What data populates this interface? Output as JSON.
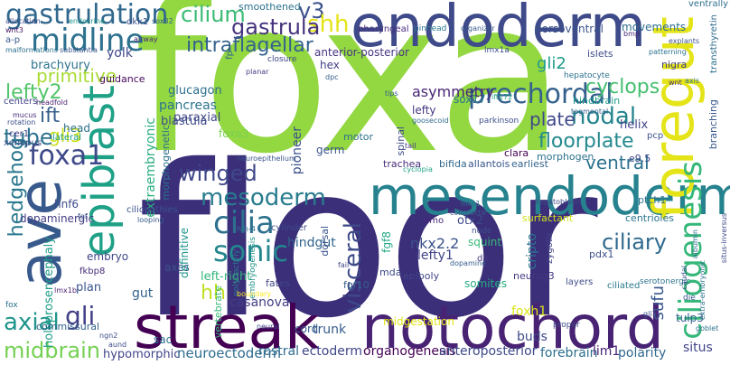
{
  "palette": {
    "dark_purple": "#440154",
    "indigo": "#414487",
    "blue": "#2a788e",
    "teal": "#22a884",
    "green": "#7ad151",
    "yellow_green": "#bddf26",
    "yellow": "#fde725"
  },
  "words": [
    {
      "text": "floor",
      "color": "#3b2f7a"
    },
    {
      "text": "foxa",
      "color": "#93d741"
    },
    {
      "text": "streak",
      "color": "#440154"
    },
    {
      "text": "notochord",
      "color": "#482374"
    },
    {
      "text": "endoderm",
      "color": "#3e4a89"
    },
    {
      "text": "mesendoderm",
      "color": "#26828e"
    },
    {
      "text": "foregut",
      "color": "#e4e419"
    },
    {
      "text": "ave",
      "color": "#38598c"
    },
    {
      "text": "epiblast",
      "color": "#1fa187"
    },
    {
      "text": "gastrulation",
      "color": "#31688e"
    },
    {
      "text": "midline",
      "color": "#2d718e"
    },
    {
      "text": "cilium",
      "color": "#3bbb75"
    },
    {
      "text": "v3",
      "color": "#3b528b"
    },
    {
      "text": "ciliogenesis",
      "color": "#35b779"
    },
    {
      "text": "shh",
      "color": "#e5e419"
    },
    {
      "text": "gastrula",
      "color": "#46337e"
    },
    {
      "text": "prechordal",
      "color": "#34618d"
    },
    {
      "text": "nodal",
      "color": "#25848e"
    },
    {
      "text": "primitive",
      "color": "#a8db34"
    },
    {
      "text": "lefty2",
      "color": "#52c569"
    },
    {
      "text": "ift",
      "color": "#355f8d"
    },
    {
      "text": "gli3",
      "color": "#c8e020"
    },
    {
      "text": "tube",
      "color": "#2c728e"
    },
    {
      "text": "hedgehog",
      "color": "#2a788e"
    },
    {
      "text": "foxa1",
      "color": "#3e4989"
    },
    {
      "text": "axial",
      "color": "#1f958b"
    },
    {
      "text": "gli",
      "color": "#424086"
    },
    {
      "text": "midbrain",
      "color": "#75d054"
    },
    {
      "text": "cilia",
      "color": "#2d718e"
    },
    {
      "text": "sonic",
      "color": "#24868e"
    },
    {
      "text": "hh",
      "color": "#c2df23"
    },
    {
      "text": "mesoderm",
      "color": "#287c8e"
    },
    {
      "text": "winged",
      "color": "#3f4889"
    },
    {
      "text": "intraflagellar",
      "color": "#33638d"
    },
    {
      "text": "visceral",
      "color": "#3e4a89"
    },
    {
      "text": "floorplate",
      "color": "#23898e"
    },
    {
      "text": "ventral",
      "color": "#2c728e"
    },
    {
      "text": "ciliary",
      "color": "#306a8e"
    },
    {
      "text": "cyclops",
      "color": "#44bf70"
    },
    {
      "text": "plate",
      "color": "#3f4889"
    },
    {
      "text": "gli2",
      "color": "#1e9b8a"
    },
    {
      "text": "sox17",
      "color": "#2b758e"
    },
    {
      "text": "lefty",
      "color": "#453781"
    },
    {
      "text": "helix",
      "color": "#404688"
    },
    {
      "text": "asymmetry",
      "color": "#482576"
    },
    {
      "text": "extraembryonic",
      "color": "#29af7f"
    },
    {
      "text": "axes",
      "color": "#3b528b"
    },
    {
      "text": "casanova",
      "color": "#433e85"
    },
    {
      "text": "trunk",
      "color": "#365c8d"
    },
    {
      "text": "rostral",
      "color": "#2f6c8e"
    },
    {
      "text": "ectoderm",
      "color": "#3f4788"
    },
    {
      "text": "organogenesis",
      "color": "#440154"
    },
    {
      "text": "anteroposterior",
      "color": "#3e4a89"
    },
    {
      "text": "forebrain",
      "color": "#2d708e"
    },
    {
      "text": "lim1",
      "color": "#482475"
    },
    {
      "text": "polarity",
      "color": "#31688e"
    },
    {
      "text": "situs",
      "color": "#404588"
    },
    {
      "text": "hindgut",
      "color": "#32658e"
    },
    {
      "text": "cripto",
      "color": "#2a768e"
    },
    {
      "text": "nkx2.2",
      "color": "#3b528b"
    },
    {
      "text": "lefty1",
      "color": "#414487"
    },
    {
      "text": "fgf8",
      "color": "#22a884"
    },
    {
      "text": "somites",
      "color": "#25ab82"
    },
    {
      "text": "foxh1",
      "color": "#dde318"
    },
    {
      "text": "sufu",
      "color": "#38588c"
    },
    {
      "text": "tulp3",
      "color": "#33628d"
    },
    {
      "text": "pioneer",
      "color": "#3b528b"
    },
    {
      "text": "smoothened",
      "color": "#2c728e"
    },
    {
      "text": "glucagon",
      "color": "#2d708e"
    },
    {
      "text": "paraxial",
      "color": "#3f4788"
    },
    {
      "text": "pancreas",
      "color": "#2b758e"
    },
    {
      "text": "blastula",
      "color": "#3e4c8a"
    },
    {
      "text": "foxa3",
      "color": "#7ad151"
    },
    {
      "text": "anterior-posterior",
      "color": "#453581"
    },
    {
      "text": "hex",
      "color": "#423f85"
    },
    {
      "text": "yolk",
      "color": "#3f4889"
    },
    {
      "text": "brachyury",
      "color": "#2c738e"
    },
    {
      "text": "left-right",
      "color": "#32b67a"
    },
    {
      "text": "definitive",
      "color": "#1f948c"
    },
    {
      "text": "vertebrate",
      "color": "#38b977"
    },
    {
      "text": "dopaminergic",
      "color": "#433d84"
    },
    {
      "text": "hnf6",
      "color": "#3e4a89"
    },
    {
      "text": "holoprosencephaly",
      "color": "#1f9e89"
    },
    {
      "text": "embryo",
      "color": "#3f4788"
    },
    {
      "text": "fkbp8",
      "color": "#472c7a"
    },
    {
      "text": "plan",
      "color": "#39558c"
    },
    {
      "text": "commissural",
      "color": "#33638d"
    },
    {
      "text": "gut",
      "color": "#33638d"
    },
    {
      "text": "hypomorphic",
      "color": "#404588"
    },
    {
      "text": "neuroectoderm",
      "color": "#2f6c8e"
    },
    {
      "text": "headfold",
      "color": "#481f70"
    },
    {
      "text": "mucus",
      "color": "#472d7b"
    },
    {
      "text": "rotation",
      "color": "#3b528b"
    },
    {
      "text": "cer1",
      "color": "#433e85"
    },
    {
      "text": "xenopus",
      "color": "#3d4d8a"
    },
    {
      "text": "centers",
      "color": "#414487"
    },
    {
      "text": "lateral",
      "color": "#1f9f88"
    },
    {
      "text": "head",
      "color": "#2d718e"
    },
    {
      "text": "guidance",
      "color": "#46085c"
    },
    {
      "text": "a-p",
      "color": "#375b8d"
    },
    {
      "text": "malformations",
      "color": "#2c718e"
    },
    {
      "text": "substantia",
      "color": "#39558c"
    },
    {
      "text": "allocation",
      "color": "#3d4e8a"
    },
    {
      "text": "endocrine",
      "color": "#1f968b"
    },
    {
      "text": "wnt3",
      "color": "#481467"
    },
    {
      "text": "dkk1",
      "color": "#3b528b"
    },
    {
      "text": "sox32",
      "color": "#355f8d"
    },
    {
      "text": "airway",
      "color": "#482878"
    },
    {
      "text": "fp",
      "color": "#31668e"
    },
    {
      "text": "morphogenetic",
      "color": "#2c728e"
    },
    {
      "text": "cyclopia",
      "color": "#20a386"
    },
    {
      "text": "goosecoid",
      "color": "#306a8e"
    },
    {
      "text": "tips",
      "color": "#355e8d"
    },
    {
      "text": "dpc",
      "color": "#365d8d"
    },
    {
      "text": "planar",
      "color": "#433e85"
    },
    {
      "text": "closure",
      "color": "#3f4889"
    },
    {
      "text": "pharyngeal",
      "color": "#472f7d"
    },
    {
      "text": "pinhead",
      "color": "#2a788e"
    },
    {
      "text": "organizer",
      "color": "#375a8c"
    },
    {
      "text": "dorsoventral",
      "color": "#3a538b"
    },
    {
      "text": "movements",
      "color": "#2e6d8e"
    },
    {
      "text": "ventrally",
      "color": "#2e6e8e"
    },
    {
      "text": "transthyretin",
      "color": "#2e6d8e"
    },
    {
      "text": "lmx1a",
      "color": "#3c4f8a"
    },
    {
      "text": "islets",
      "color": "#3d4e8a"
    },
    {
      "text": "nigra",
      "color": "#433e85"
    },
    {
      "text": "hepatocyte",
      "color": "#2c728e"
    },
    {
      "text": "ift172",
      "color": "#21a685"
    },
    {
      "text": "parkinson",
      "color": "#3d4e8a"
    },
    {
      "text": "hindbrain",
      "color": "#1f9a8a"
    },
    {
      "text": "tegmental",
      "color": "#355f8d"
    },
    {
      "text": "bmp",
      "color": "#482878"
    },
    {
      "text": "explants",
      "color": "#3b528b"
    },
    {
      "text": "patterning",
      "color": "#2c738e"
    },
    {
      "text": "wnt",
      "color": "#46337e"
    },
    {
      "text": "axis",
      "color": "#2c728e"
    },
    {
      "text": "branching",
      "color": "#38598c"
    },
    {
      "text": "pcp",
      "color": "#3b528b"
    },
    {
      "text": "e9.5",
      "color": "#3f4889"
    },
    {
      "text": "morphogen",
      "color": "#2c728e"
    },
    {
      "text": "clara",
      "color": "#440154"
    },
    {
      "text": "earliest",
      "color": "#33638d"
    },
    {
      "text": "allantois",
      "color": "#39568c"
    },
    {
      "text": "bifida",
      "color": "#31688e"
    },
    {
      "text": "trachea",
      "color": "#472d7b"
    },
    {
      "text": "germ",
      "color": "#3a538b"
    },
    {
      "text": "motor",
      "color": "#2c728e"
    },
    {
      "text": "spinal",
      "color": "#3e4a89"
    },
    {
      "text": "tail",
      "color": "#453882"
    },
    {
      "text": "neuroepithelium",
      "color": "#3a548c"
    },
    {
      "text": "ptch1",
      "color": "#2d708e"
    },
    {
      "text": "centrioles",
      "color": "#2b748e"
    },
    {
      "text": "ciliopathies",
      "color": "#3b518b"
    },
    {
      "text": "looping",
      "color": "#38588c"
    },
    {
      "text": "cylinder",
      "color": "#3e4989"
    },
    {
      "text": "dorsal",
      "color": "#3a548c"
    },
    {
      "text": "node",
      "color": "#3e4c8a"
    },
    {
      "text": "zygotic",
      "color": "#414487"
    },
    {
      "text": "surfactant",
      "color": "#d0e11c"
    },
    {
      "text": "otx2",
      "color": "#3e4989"
    },
    {
      "text": "smo",
      "color": "#482677"
    },
    {
      "text": "squint",
      "color": "#39b977"
    },
    {
      "text": "da",
      "color": "#453781"
    },
    {
      "text": "pdx1",
      "color": "#3c4f8a"
    },
    {
      "text": "hepatoblasts",
      "color": "#3f4788"
    },
    {
      "text": "mks1",
      "color": "#2e6f8e"
    },
    {
      "text": "dopamine",
      "color": "#365d8d"
    },
    {
      "text": "compacta",
      "color": "#39568c"
    },
    {
      "text": "embryogenesis",
      "color": "#20928c"
    },
    {
      "text": "hfh-4",
      "color": "#2e6e8e"
    },
    {
      "text": "polydactyly",
      "color": "#2b758e"
    },
    {
      "text": "fates",
      "color": "#404688"
    },
    {
      "text": "fgf10",
      "color": "#355e8d"
    },
    {
      "text": "mda",
      "color": "#3e4989"
    },
    {
      "text": "epiboly",
      "color": "#404588"
    },
    {
      "text": "neurog3",
      "color": "#453882"
    },
    {
      "text": "layers",
      "color": "#3d4d8a"
    },
    {
      "text": "ciliated",
      "color": "#2a788e"
    },
    {
      "text": "serotonergic",
      "color": "#2c738e"
    },
    {
      "text": "die",
      "color": "#3a538b"
    },
    {
      "text": "albumin",
      "color": "#2d708e"
    },
    {
      "text": "caudal",
      "color": "#3b528b"
    },
    {
      "text": "situs-inversus",
      "color": "#3e4a89"
    },
    {
      "text": "extra-embryonic",
      "color": "#2c728e"
    },
    {
      "text": "gli1",
      "color": "#3b528b"
    },
    {
      "text": "goblet",
      "color": "#2c718e"
    },
    {
      "text": "proper",
      "color": "#3f4889"
    },
    {
      "text": "midgestation",
      "color": "#e2e418"
    },
    {
      "text": "buds",
      "color": "#3e4a89"
    },
    {
      "text": "cord",
      "color": "#365c8d"
    },
    {
      "text": "neural",
      "color": "#3e4989"
    },
    {
      "text": "boundary",
      "color": "#fde725"
    },
    {
      "text": "fail",
      "color": "#3f4889"
    },
    {
      "text": "lmx1b",
      "color": "#481c6e"
    },
    {
      "text": "ngn2",
      "color": "#3d4d8a"
    },
    {
      "text": "aund",
      "color": "#3e4989"
    },
    {
      "text": "sac",
      "color": "#2d708e"
    },
    {
      "text": "fox",
      "color": "#2d718e"
    },
    {
      "text": "fgf",
      "color": "#3b528b"
    },
    {
      "text": "wnt axis",
      "color": "#46337e"
    },
    {
      "text": "neurotube",
      "color": "#3b528b"
    }
  ]
}
